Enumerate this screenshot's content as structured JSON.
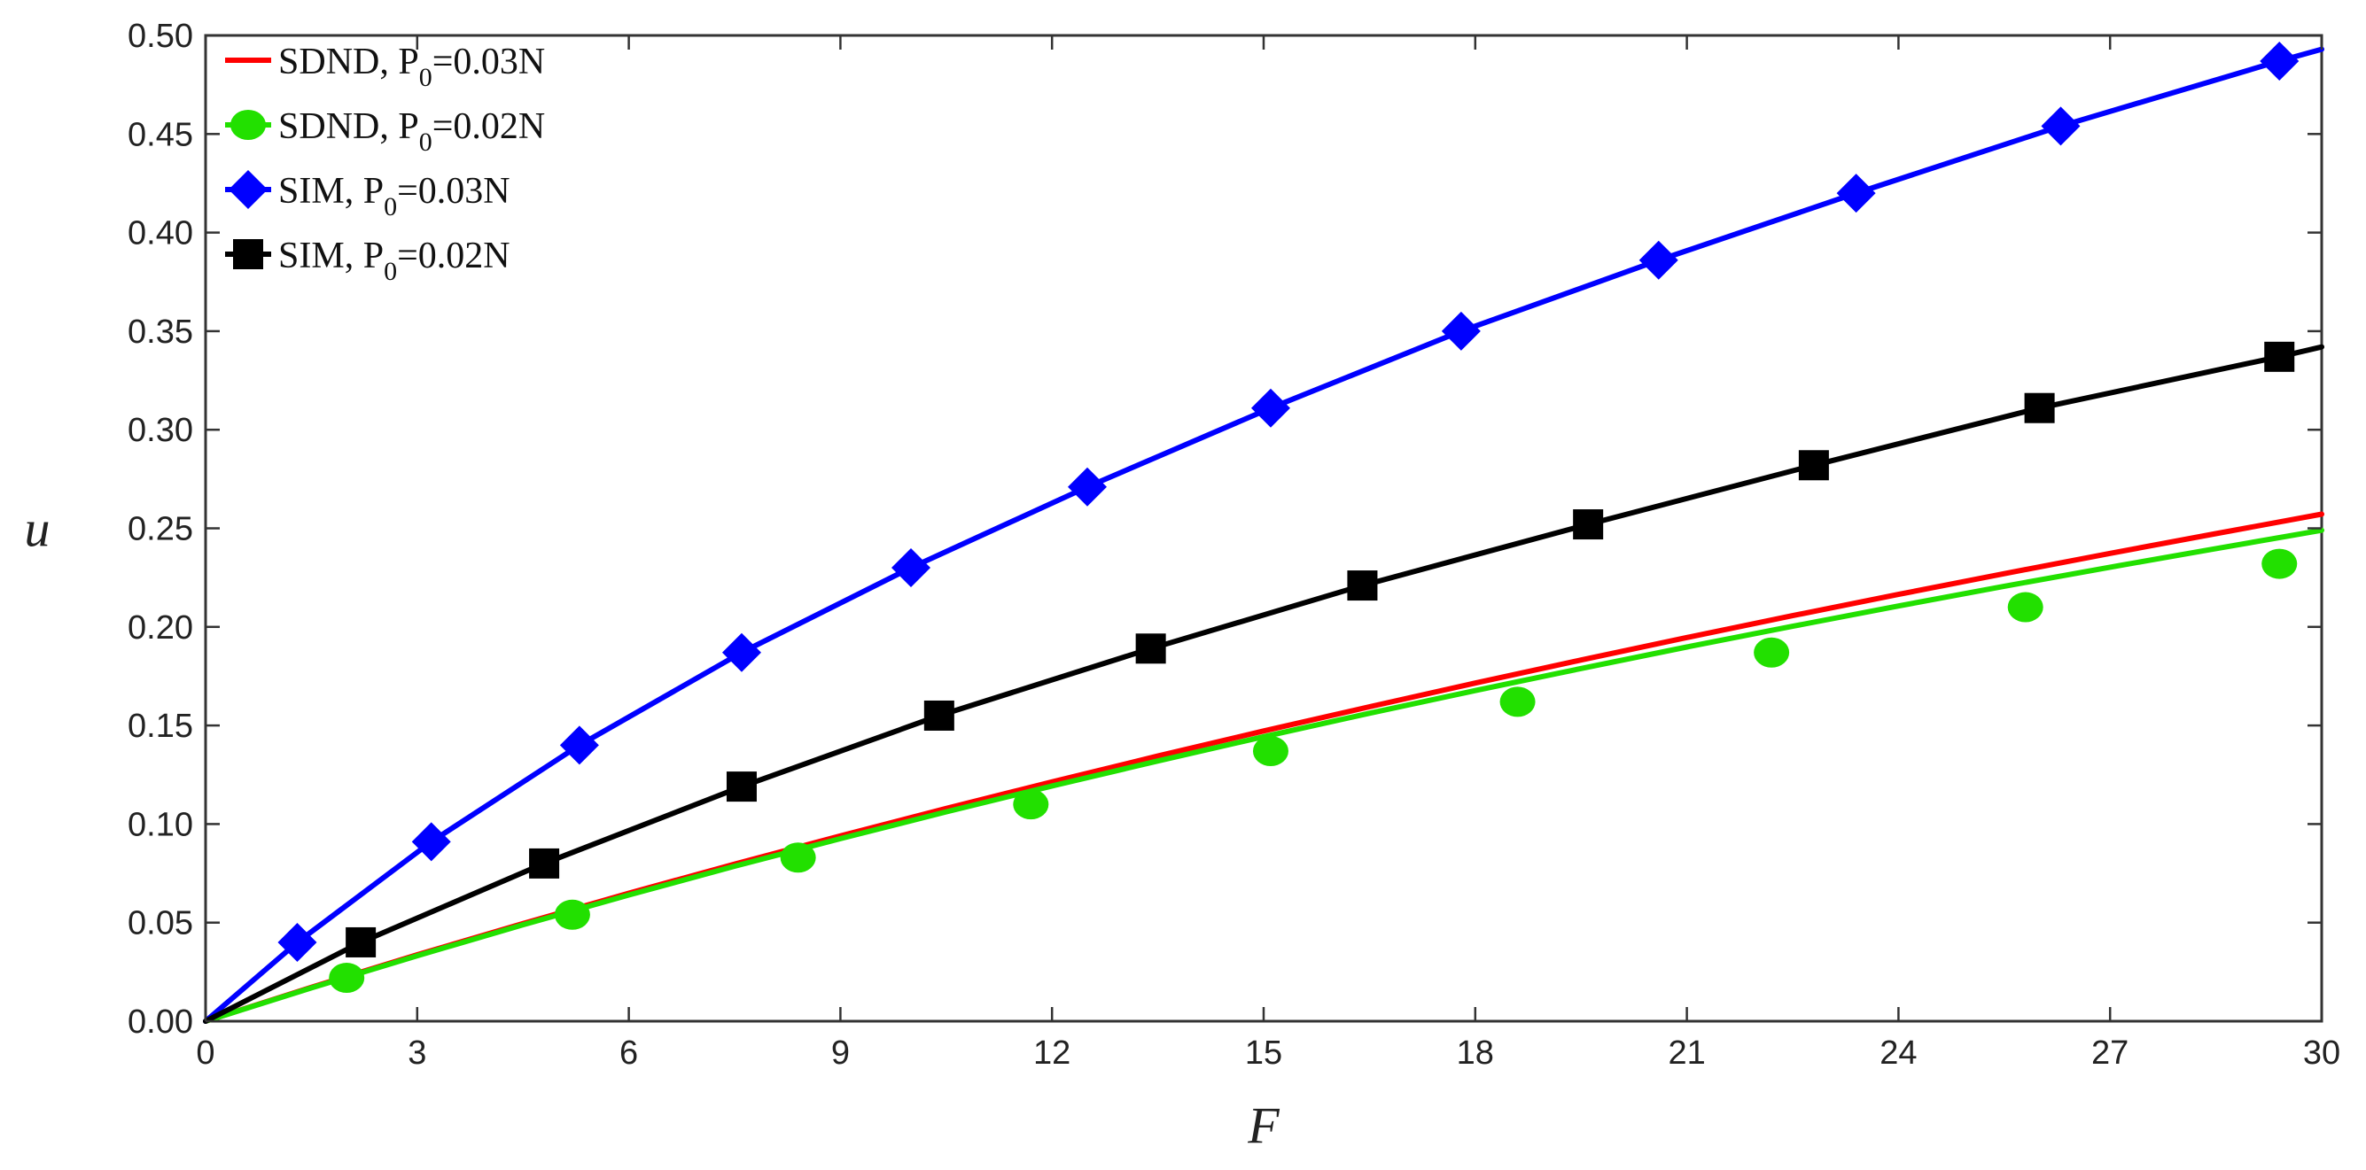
{
  "chart_data": {
    "type": "line",
    "xlabel": "F",
    "ylabel": "u",
    "xlim": [
      0,
      30
    ],
    "ylim": [
      0,
      0.5
    ],
    "xticks": [
      "0",
      "3",
      "6",
      "9",
      "12",
      "15",
      "18",
      "21",
      "24",
      "27",
      "30"
    ],
    "yticks": [
      "0.00",
      "0.05",
      "0.10",
      "0.15",
      "0.20",
      "0.25",
      "0.30",
      "0.35",
      "0.40",
      "0.45",
      "0.50"
    ],
    "grid": false,
    "legend_position": "top-left",
    "series": [
      {
        "name": "SDND, P0=0.03N",
        "label_parts": [
          "SDND, P",
          "0",
          "=0.03N"
        ],
        "color": "#ff0000",
        "marker": "none",
        "line": {
          "x": [
            0,
            1.5,
            3,
            4.5,
            6,
            7.5,
            9,
            10.5,
            12,
            13.5,
            15,
            16.5,
            18,
            19.5,
            21,
            22.5,
            24,
            25.5,
            27,
            28.5,
            30
          ],
          "y": [
            0,
            0.0172,
            0.0337,
            0.0495,
            0.0649,
            0.0797,
            0.094,
            0.1079,
            0.1214,
            0.1345,
            0.1472,
            0.1595,
            0.1715,
            0.1832,
            0.1946,
            0.2057,
            0.2165,
            0.227,
            0.2373,
            0.2473,
            0.2572
          ]
        },
        "markers": {
          "x": [],
          "y": []
        }
      },
      {
        "name": "SDND, P0=0.02N",
        "label_parts": [
          "SDND, P",
          "0",
          "=0.02N"
        ],
        "color": "#22e000",
        "marker": "circle",
        "line": {
          "x": [
            0,
            1.5,
            3,
            4.5,
            6,
            7.5,
            9,
            10.5,
            12,
            13.5,
            15,
            16.5,
            18,
            19.5,
            21,
            22.5,
            24,
            25.5,
            27,
            28.5,
            30
          ],
          "y": [
            0,
            0.0169,
            0.0332,
            0.0489,
            0.064,
            0.0786,
            0.0926,
            0.1062,
            0.1193,
            0.132,
            0.1443,
            0.1562,
            0.1677,
            0.1789,
            0.1898,
            0.2003,
            0.2106,
            0.2206,
            0.2303,
            0.2397,
            0.249
          ]
        },
        "markers": {
          "x": [
            2.0,
            5.2,
            8.4,
            11.7,
            15.1,
            18.6,
            22.2,
            25.8,
            29.4
          ],
          "y": [
            0.022,
            0.054,
            0.083,
            0.11,
            0.137,
            0.162,
            0.187,
            0.21,
            0.232
          ]
        }
      },
      {
        "name": "SIM, P0=0.03N",
        "label_parts": [
          "SIM, P",
          "0",
          "=0.03N"
        ],
        "color": "#0000ff",
        "marker": "diamond",
        "line": {
          "x": [
            0,
            1.3,
            3.2,
            5.3,
            7.6,
            10.0,
            12.5,
            15.1,
            17.8,
            20.6,
            23.4,
            26.3,
            29.4,
            30
          ],
          "y": [
            0,
            0.04,
            0.091,
            0.14,
            0.187,
            0.23,
            0.271,
            0.311,
            0.35,
            0.386,
            0.42,
            0.454,
            0.487,
            0.493
          ]
        },
        "markers": {
          "x": [
            1.3,
            3.2,
            5.3,
            7.6,
            10.0,
            12.5,
            15.1,
            17.8,
            20.6,
            23.4,
            26.3,
            29.4
          ],
          "y": [
            0.04,
            0.091,
            0.14,
            0.187,
            0.23,
            0.271,
            0.311,
            0.35,
            0.386,
            0.42,
            0.454,
            0.487
          ]
        }
      },
      {
        "name": "SIM, P0=0.02N",
        "label_parts": [
          "SIM, P",
          "0",
          "=0.02N"
        ],
        "color": "#000000",
        "marker": "square",
        "line": {
          "x": [
            0,
            2.2,
            4.8,
            7.6,
            10.4,
            13.4,
            16.4,
            19.6,
            22.8,
            26.0,
            29.4,
            30
          ],
          "y": [
            0,
            0.04,
            0.08,
            0.119,
            0.155,
            0.189,
            0.221,
            0.252,
            0.282,
            0.311,
            0.337,
            0.342
          ]
        },
        "markers": {
          "x": [
            2.2,
            4.8,
            7.6,
            10.4,
            13.4,
            16.4,
            19.6,
            22.8,
            26.0,
            29.4
          ],
          "y": [
            0.04,
            0.08,
            0.119,
            0.155,
            0.189,
            0.221,
            0.252,
            0.282,
            0.311,
            0.337
          ]
        }
      }
    ]
  }
}
